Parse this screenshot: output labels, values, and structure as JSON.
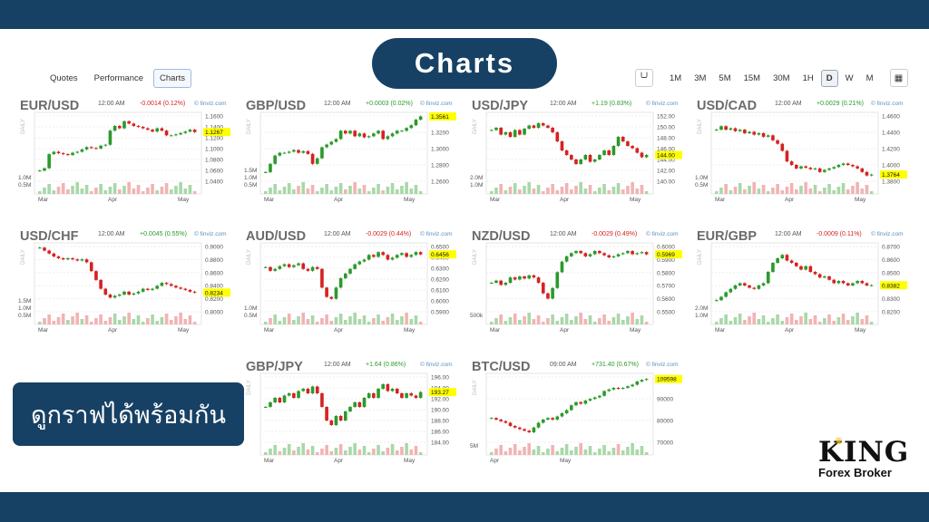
{
  "banner": {
    "title": "Charts"
  },
  "nav": {
    "tabs": [
      "Quotes",
      "Performance",
      "Charts"
    ],
    "active": "Charts"
  },
  "timeframes": {
    "items": [
      "1M",
      "3M",
      "5M",
      "15M",
      "30M",
      "1H",
      "D",
      "W",
      "M"
    ],
    "active": "D"
  },
  "caption": "ดูกราฟได้พร้อมกัน",
  "logo": {
    "brand": "KING",
    "subtitle": "Forex Broker"
  },
  "colors": {
    "up": "#2b9a2b",
    "down": "#d52222",
    "navy": "#174164",
    "highlight": "#ffff00"
  },
  "charts": [
    {
      "symbol": "EUR/USD",
      "time": "12:00 AM",
      "change": "-0.0014 (0.12%)",
      "direction": "down",
      "source": "© finviz.com",
      "y_ticks": [
        "1.1600",
        "1.1400",
        "1.1200",
        "1.1000",
        "1.0800",
        "1.0600",
        "1.0400"
      ],
      "last_price": "1.1267",
      "vol_ticks": [
        "1.0M",
        "0.5M"
      ],
      "months": [
        "Mar",
        "Apr",
        "May"
      ],
      "chart_data": {
        "type": "candlestick",
        "ylim": [
          1.03,
          1.165
        ],
        "series": [
          1.045,
          1.05,
          1.08,
          1.085,
          1.082,
          1.08,
          1.078,
          1.083,
          1.085,
          1.09,
          1.095,
          1.093,
          1.092,
          1.098,
          1.1,
          1.13,
          1.14,
          1.135,
          1.15,
          1.145,
          1.14,
          1.138,
          1.135,
          1.132,
          1.128,
          1.135,
          1.13,
          1.12,
          1.12,
          1.122,
          1.125,
          1.128,
          1.132,
          1.127
        ]
      }
    },
    {
      "symbol": "GBP/USD",
      "time": "12:00 AM",
      "change": "+0.0003 (0.02%)",
      "direction": "up",
      "source": "© finviz.com",
      "y_ticks": [
        "1.3400",
        "1.3200",
        "1.3000",
        "1.2800",
        "1.2600"
      ],
      "last_price": "1.3561",
      "vol_ticks": [
        "1.5M",
        "1.0M",
        "0.5M"
      ],
      "months": [
        "Mar",
        "Apr",
        "May"
      ],
      "chart_data": {
        "type": "candlestick",
        "ylim": [
          1.245,
          1.36
        ],
        "series": [
          1.255,
          1.27,
          1.285,
          1.29,
          1.29,
          1.292,
          1.295,
          1.29,
          1.293,
          1.288,
          1.27,
          1.28,
          1.3,
          1.305,
          1.31,
          1.315,
          1.33,
          1.325,
          1.33,
          1.32,
          1.325,
          1.318,
          1.32,
          1.325,
          1.33,
          1.315,
          1.32,
          1.325,
          1.33,
          1.33,
          1.335,
          1.34,
          1.35,
          1.356
        ]
      }
    },
    {
      "symbol": "USD/JPY",
      "time": "12:00 AM",
      "change": "+1.19 (0.83%)",
      "direction": "up",
      "source": "© finviz.com",
      "y_ticks": [
        "152.00",
        "150.00",
        "148.00",
        "146.00",
        "144.00",
        "142.00",
        "140.00"
      ],
      "last_price": "144.00",
      "vol_ticks": [
        "2.0M",
        "1.0M"
      ],
      "months": [
        "Mar",
        "Apr",
        "May"
      ],
      "chart_data": {
        "type": "candlestick",
        "ylim": [
          139,
          153
        ],
        "series": [
          149.5,
          150,
          148.5,
          149,
          148,
          149.5,
          148.5,
          149.8,
          150.5,
          150,
          151,
          150.5,
          150,
          149,
          147,
          145,
          144,
          143,
          142,
          143,
          144,
          142.5,
          143,
          144,
          145,
          144,
          146,
          148,
          147,
          146,
          145.5,
          144.5,
          143.5,
          144
        ]
      }
    },
    {
      "symbol": "USD/CAD",
      "time": "12:00 AM",
      "change": "+0.0029 (0.21%)",
      "direction": "up",
      "source": "© finviz.com",
      "y_ticks": [
        "1.4600",
        "1.4400",
        "1.4200",
        "1.4000",
        "1.3800"
      ],
      "last_price": "1.3764",
      "vol_ticks": [
        "1.0M",
        "0.5M"
      ],
      "months": [
        "Mar",
        "Apr",
        "May"
      ],
      "chart_data": {
        "type": "candlestick",
        "ylim": [
          1.372,
          1.462
        ],
        "series": [
          1.44,
          1.445,
          1.44,
          1.442,
          1.438,
          1.44,
          1.435,
          1.437,
          1.433,
          1.435,
          1.43,
          1.432,
          1.425,
          1.42,
          1.41,
          1.395,
          1.39,
          1.385,
          1.388,
          1.386,
          1.384,
          1.385,
          1.38,
          1.383,
          1.385,
          1.387,
          1.39,
          1.392,
          1.39,
          1.388,
          1.385,
          1.38,
          1.375,
          1.3764
        ]
      }
    },
    {
      "symbol": "USD/CHF",
      "time": "12:00 AM",
      "change": "+0.0045 (0.55%)",
      "direction": "up",
      "source": "© finviz.com",
      "y_ticks": [
        "0.9000",
        "0.8800",
        "0.8600",
        "0.8400",
        "0.8200",
        "0.8000"
      ],
      "last_price": "0.8234",
      "vol_ticks": [
        "1.5M",
        "1.0M",
        "0.5M"
      ],
      "months": [
        "Mar",
        "Apr",
        "May"
      ],
      "chart_data": {
        "type": "candlestick",
        "ylim": [
          0.797,
          0.905
        ],
        "series": [
          0.9,
          0.895,
          0.89,
          0.885,
          0.882,
          0.88,
          0.882,
          0.88,
          0.878,
          0.88,
          0.875,
          0.86,
          0.845,
          0.83,
          0.82,
          0.815,
          0.818,
          0.82,
          0.825,
          0.82,
          0.822,
          0.825,
          0.83,
          0.828,
          0.83,
          0.835,
          0.84,
          0.838,
          0.835,
          0.832,
          0.83,
          0.828,
          0.825,
          0.8234
        ]
      }
    },
    {
      "symbol": "AUD/USD",
      "time": "12:00 AM",
      "change": "-0.0029 (0.44%)",
      "direction": "down",
      "source": "© finviz.com",
      "y_ticks": [
        "0.6500",
        "0.6400",
        "0.6300",
        "0.6200",
        "0.6100",
        "0.6000",
        "0.5900"
      ],
      "last_price": "0.6456",
      "vol_ticks": [
        "1.0M",
        "0.5M"
      ],
      "months": [
        "Mar",
        "Apr",
        "May"
      ],
      "chart_data": {
        "type": "candlestick",
        "ylim": [
          0.588,
          0.656
        ],
        "series": [
          0.632,
          0.628,
          0.63,
          0.633,
          0.635,
          0.632,
          0.634,
          0.636,
          0.63,
          0.628,
          0.632,
          0.63,
          0.61,
          0.6,
          0.598,
          0.61,
          0.62,
          0.625,
          0.63,
          0.635,
          0.638,
          0.64,
          0.645,
          0.643,
          0.648,
          0.645,
          0.64,
          0.642,
          0.645,
          0.647,
          0.643,
          0.645,
          0.648,
          0.6456
        ]
      }
    },
    {
      "symbol": "NZD/USD",
      "time": "12:00 AM",
      "change": "-0.0029 (0.49%)",
      "direction": "down",
      "source": "© finviz.com",
      "y_ticks": [
        "0.6000",
        "0.5900",
        "0.5800",
        "0.5700",
        "0.5600",
        "0.5500"
      ],
      "last_price": "0.5969",
      "vol_ticks": [
        "500k"
      ],
      "months": [
        "Mar",
        "Apr",
        "May"
      ],
      "chart_data": {
        "type": "candlestick",
        "ylim": [
          0.546,
          0.606
        ],
        "series": [
          0.57,
          0.572,
          0.568,
          0.57,
          0.575,
          0.573,
          0.576,
          0.574,
          0.577,
          0.575,
          0.57,
          0.56,
          0.555,
          0.565,
          0.58,
          0.59,
          0.595,
          0.598,
          0.6,
          0.598,
          0.595,
          0.597,
          0.6,
          0.598,
          0.596,
          0.594,
          0.595,
          0.597,
          0.598,
          0.6,
          0.597,
          0.598,
          0.599,
          0.5969
        ]
      }
    },
    {
      "symbol": "EUR/GBP",
      "time": "12:00 AM",
      "change": "-0.0009 (0.11%)",
      "direction": "down",
      "source": "© finviz.com",
      "y_ticks": [
        "0.8700",
        "0.8600",
        "0.8500",
        "0.8400",
        "0.8300",
        "0.8200"
      ],
      "last_price": "0.8382",
      "vol_ticks": [
        "2.0M",
        "1.0M"
      ],
      "months": [
        "Mar",
        "Apr",
        "May"
      ],
      "chart_data": {
        "type": "candlestick",
        "ylim": [
          0.818,
          0.874
        ],
        "series": [
          0.825,
          0.828,
          0.832,
          0.835,
          0.838,
          0.84,
          0.838,
          0.836,
          0.835,
          0.838,
          0.84,
          0.85,
          0.858,
          0.862,
          0.865,
          0.86,
          0.858,
          0.855,
          0.852,
          0.855,
          0.85,
          0.848,
          0.845,
          0.846,
          0.843,
          0.84,
          0.842,
          0.84,
          0.838,
          0.84,
          0.842,
          0.84,
          0.838,
          0.8382
        ]
      }
    },
    {
      "symbol": "GBP/JPY",
      "time": "12:00 AM",
      "change": "+1.64 (0.86%)",
      "direction": "up",
      "source": "© finviz.com",
      "y_ticks": [
        "196.00",
        "194.00",
        "192.00",
        "190.00",
        "188.00",
        "186.00",
        "184.00"
      ],
      "last_price": "193.27",
      "vol_ticks": [],
      "months": [
        "Mar",
        "Apr",
        "May"
      ],
      "chart_data": {
        "type": "candlestick",
        "ylim": [
          183,
          197
        ],
        "series": [
          190,
          191,
          192,
          191,
          192.5,
          193,
          192,
          193.5,
          194,
          193,
          194.5,
          193,
          190,
          187,
          186,
          188,
          187,
          189,
          190,
          191,
          190,
          192,
          193,
          192,
          194,
          195,
          193.5,
          194,
          193,
          192,
          193,
          192.5,
          192,
          193.27
        ]
      }
    },
    {
      "symbol": "BTC/USD",
      "time": "09:00 AM",
      "change": "+731.40 (0.67%)",
      "direction": "up",
      "source": "© finviz.com",
      "y_ticks": [
        "100000",
        "90000",
        "80000",
        "70000"
      ],
      "last_price": "109598",
      "vol_ticks": [
        "5M"
      ],
      "months": [
        "Apr",
        "May"
      ],
      "chart_data": {
        "type": "candlestick",
        "ylim": [
          72000,
          112000
        ],
        "series": [
          85000,
          84000,
          83000,
          82000,
          80000,
          79000,
          78000,
          77000,
          76000,
          79000,
          82000,
          84000,
          85000,
          84000,
          86000,
          88000,
          90000,
          93000,
          95000,
          94000,
          96000,
          97000,
          98000,
          99000,
          102000,
          103000,
          104000,
          103500,
          104000,
          105000,
          106000,
          108000,
          109000,
          109598
        ]
      }
    }
  ]
}
